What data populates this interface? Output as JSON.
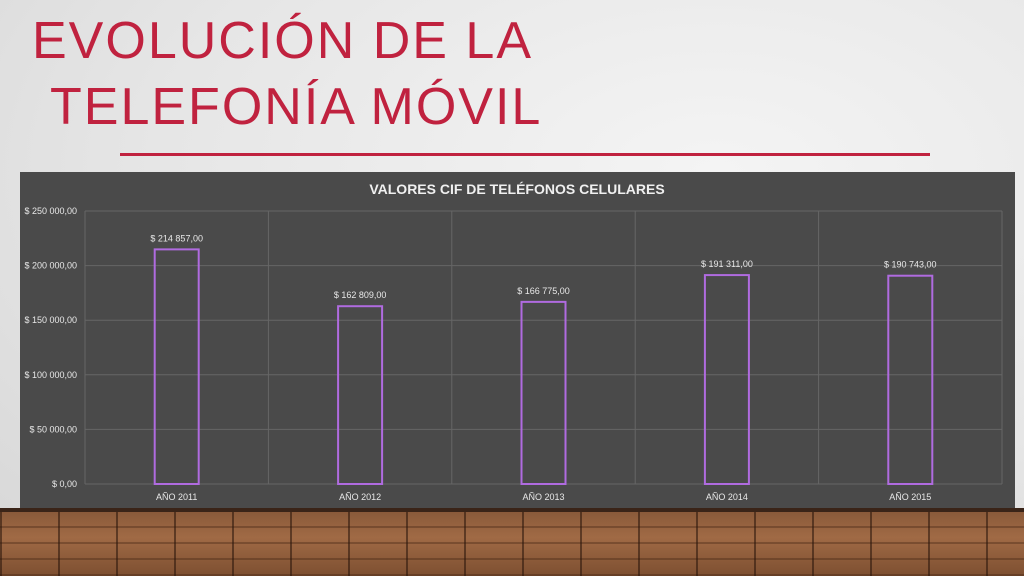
{
  "slide": {
    "title_line1": "Evolución de la",
    "title_line2": "telefonía móvil"
  },
  "colors": {
    "title": "#c0223f",
    "chart_background": "#4a4a4a",
    "bar_outline": "#b06be0",
    "gridline": "#666666",
    "label_text": "#e8e8e8"
  },
  "chart_data": {
    "type": "bar",
    "title": "VALORES CIF DE TELÉFONOS CELULARES",
    "categories": [
      "AÑO 2011",
      "AÑO 2012",
      "AÑO 2013",
      "AÑO 2014",
      "AÑO 2015"
    ],
    "values": [
      214857,
      162809,
      166775,
      191311,
      190743
    ],
    "data_labels": [
      "$ 214 857,00",
      "$ 162 809,00",
      "$ 166 775,00",
      "$ 191 311,00",
      "$ 190 743,00"
    ],
    "y_ticks": [
      0,
      50000,
      100000,
      150000,
      200000,
      250000
    ],
    "y_tick_labels": [
      "$ 0,00",
      "$ 50 000,00",
      "$ 100 000,00",
      "$ 150 000,00",
      "$ 200 000,00",
      "$ 250 000,00"
    ],
    "ylim": [
      0,
      250000
    ],
    "grid": true,
    "legend": "none"
  }
}
